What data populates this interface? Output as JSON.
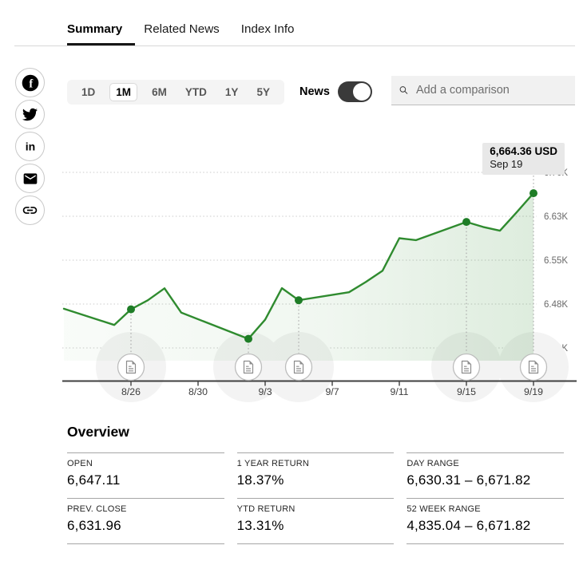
{
  "tabs": {
    "items": [
      {
        "label": "Summary",
        "active": true
      },
      {
        "label": "Related News",
        "active": false
      },
      {
        "label": "Index Info",
        "active": false
      }
    ]
  },
  "share": {
    "items": [
      "facebook",
      "twitter",
      "linkedin",
      "email",
      "copy-link"
    ]
  },
  "controls": {
    "ranges": [
      {
        "label": "1D",
        "active": false
      },
      {
        "label": "1M",
        "active": true
      },
      {
        "label": "6M",
        "active": false
      },
      {
        "label": "YTD",
        "active": false
      },
      {
        "label": "1Y",
        "active": false
      },
      {
        "label": "5Y",
        "active": false
      }
    ],
    "news_toggle": {
      "label": "News",
      "state": "on"
    },
    "comparison": {
      "placeholder": "Add a comparison"
    }
  },
  "tooltip": {
    "price": "6,664.36 USD",
    "date": "Sep 19"
  },
  "chart_data": {
    "type": "line",
    "x_start": "8/22",
    "series": [
      {
        "name": "index-price",
        "points": [
          {
            "date": "8/22",
            "close": 6466.91
          },
          {
            "date": "8/25",
            "close": 6439.32
          },
          {
            "date": "8/26",
            "close": 6465.94
          },
          {
            "date": "8/27",
            "close": 6481.4
          },
          {
            "date": "8/28",
            "close": 6501.86
          },
          {
            "date": "8/29",
            "close": 6460.26
          },
          {
            "date": "9/2",
            "close": 6415.54
          },
          {
            "date": "9/3",
            "close": 6448.26
          },
          {
            "date": "9/4",
            "close": 6502.08
          },
          {
            "date": "9/5",
            "close": 6481.5
          },
          {
            "date": "9/8",
            "close": 6495.15
          },
          {
            "date": "9/9",
            "close": 6512.61
          },
          {
            "date": "9/10",
            "close": 6532.04
          },
          {
            "date": "9/11",
            "close": 6587.47
          },
          {
            "date": "9/12",
            "close": 6584.29
          },
          {
            "date": "9/15",
            "close": 6615.28
          },
          {
            "date": "9/16",
            "close": 6606.76
          },
          {
            "date": "9/17",
            "close": 6600.35
          },
          {
            "date": "9/18",
            "close": 6631.96
          },
          {
            "date": "9/19",
            "close": 6664.36
          }
        ]
      }
    ],
    "news_markers": [
      "8/26",
      "9/2",
      "9/5",
      "9/15",
      "9/19"
    ],
    "last_point": {
      "date": "9/19",
      "value": 6664.36,
      "label": "6,664.36 USD"
    },
    "y_ticks": [
      {
        "label": "6.70K",
        "value": 6700
      },
      {
        "label": "6.63K",
        "value": 6625
      },
      {
        "label": "6.55K",
        "value": 6550
      },
      {
        "label": "6.48K",
        "value": 6475
      },
      {
        "label": "6.40K",
        "value": 6400
      }
    ],
    "x_ticks": [
      "8/26",
      "8/30",
      "9/3",
      "9/7",
      "9/11",
      "9/15",
      "9/19"
    ],
    "ylim": [
      6400,
      6700
    ],
    "grid": true,
    "colors": {
      "line": "#2f8b2f",
      "dot": "#1e7d26",
      "grid": "#cbcbcb",
      "axis": "#3f3f3f",
      "halo": "#f3f3f3",
      "marker_line": "#ababab",
      "y_label": "#6a6a6a",
      "x_label": "#3d3d3d",
      "news_circle_border": "#bdbdbd",
      "news_glyph": "#8c8c8c"
    }
  },
  "overview": {
    "title": "Overview",
    "cells": [
      {
        "label": "OPEN",
        "value": "6,647.11"
      },
      {
        "label": "1 YEAR RETURN",
        "value": "18.37%"
      },
      {
        "label": "DAY RANGE",
        "value": "6,630.31 – 6,671.82"
      },
      {
        "label": "PREV. CLOSE",
        "value": "6,631.96"
      },
      {
        "label": "YTD RETURN",
        "value": "13.31%"
      },
      {
        "label": "52 WEEK RANGE",
        "value": "4,835.04 – 6,671.82"
      }
    ]
  }
}
